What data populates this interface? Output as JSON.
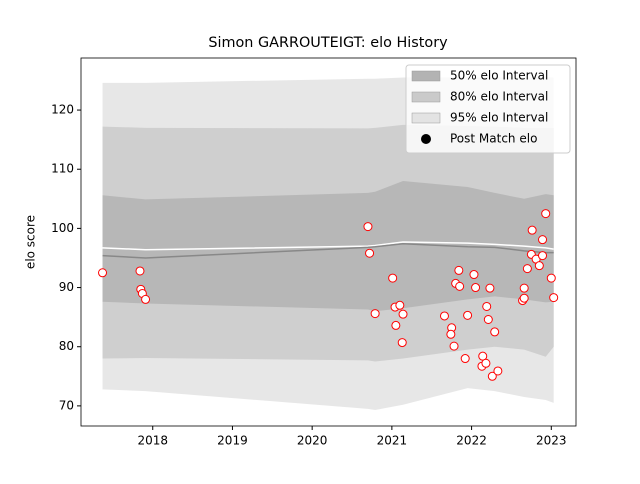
{
  "chart_data": {
    "type": "band-scatter",
    "title": "Simon GARROUTEIGT: elo History",
    "ylabel": "elo score",
    "xlim": [
      2017.1,
      2023.31
    ],
    "ylim": [
      66.6,
      128.8
    ],
    "xticks": [
      2018,
      2019,
      2020,
      2021,
      2022,
      2023
    ],
    "yticks": [
      70,
      80,
      90,
      100,
      110,
      120
    ],
    "legend": "upper right",
    "band_x": [
      2017.37,
      2017.91,
      2020.7,
      2020.79,
      2021.14,
      2021.95,
      2022.29,
      2022.66,
      2022.93,
      2023.03
    ],
    "bands": [
      {
        "name": "95% elo Interval",
        "color": "#e3e3e3",
        "lower": [
          72.8,
          72.5,
          69.5,
          69.3,
          70.2,
          73.0,
          72.5,
          71.5,
          71.0,
          70.5
        ],
        "upper": [
          124.6,
          124.6,
          125.3,
          125.3,
          125.5,
          125.5,
          125.5,
          125.5,
          125.6,
          125.5
        ]
      },
      {
        "name": "80% elo Interval",
        "color": "#cacaca",
        "lower": [
          78.0,
          78.1,
          77.7,
          77.5,
          78.0,
          79.5,
          80.0,
          79.5,
          78.3,
          80.0
        ],
        "upper": [
          117.2,
          117.0,
          116.9,
          117.0,
          117.5,
          117.3,
          117.2,
          117.0,
          117.0,
          117.0
        ]
      },
      {
        "name": "50% elo Interval",
        "color": "#b3b3b3",
        "lower": [
          87.6,
          87.3,
          86.3,
          86.0,
          86.5,
          88.0,
          88.5,
          88.0,
          87.5,
          87.6
        ],
        "upper": [
          105.6,
          104.9,
          106.0,
          106.2,
          108.0,
          107.0,
          106.0,
          105.0,
          105.8,
          105.6
        ]
      }
    ],
    "lines": [
      {
        "color": "#ffffff",
        "values": [
          96.7,
          96.4,
          97.0,
          97.1,
          97.7,
          97.5,
          97.3,
          97.0,
          96.7,
          96.5
        ]
      },
      {
        "color": "#888888",
        "values": [
          95.4,
          95.0,
          96.8,
          96.9,
          97.4,
          96.9,
          96.8,
          96.2,
          95.9,
          95.9
        ]
      }
    ],
    "points": {
      "name": "Post Match elo",
      "color": "#ff0000",
      "x": [
        2017.37,
        2017.84,
        2017.85,
        2017.87,
        2017.91,
        2020.7,
        2020.72,
        2020.79,
        2021.01,
        2021.04,
        2021.1,
        2021.14,
        2021.05,
        2021.13,
        2021.66,
        2021.75,
        2021.74,
        2021.78,
        2021.84,
        2021.8,
        2021.85,
        2021.95,
        2021.92,
        2022.03,
        2022.05,
        2022.14,
        2022.13,
        2022.18,
        2022.19,
        2022.23,
        2022.21,
        2022.29,
        2022.26,
        2022.33,
        2022.64,
        2022.66,
        2022.66,
        2022.7,
        2022.75,
        2022.76,
        2022.81,
        2022.85,
        2022.89,
        2022.89,
        2022.93,
        2023.0,
        2023.03
      ],
      "y": [
        92.5,
        92.8,
        89.7,
        89.0,
        88.0,
        100.3,
        95.8,
        85.6,
        91.6,
        86.7,
        87.0,
        85.5,
        83.6,
        80.7,
        85.2,
        83.2,
        82.1,
        80.1,
        92.9,
        90.7,
        90.2,
        85.3,
        78.0,
        92.2,
        90.0,
        78.4,
        76.7,
        77.2,
        86.8,
        89.9,
        84.6,
        82.5,
        75.0,
        75.9,
        87.8,
        88.2,
        89.9,
        93.2,
        95.6,
        99.7,
        94.8,
        93.7,
        95.4,
        98.1,
        102.5,
        91.6,
        88.3
      ]
    }
  }
}
